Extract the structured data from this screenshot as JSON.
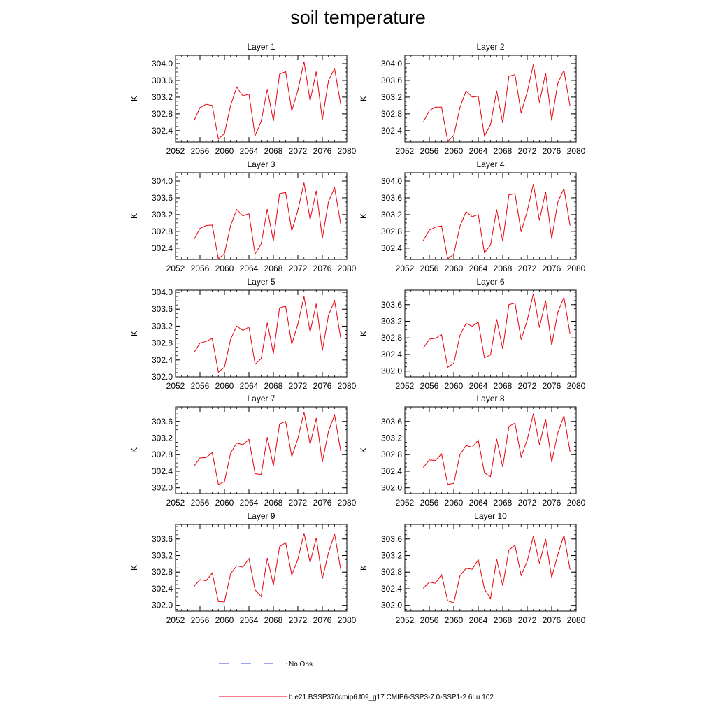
{
  "title": "soil temperature",
  "colors": {
    "model": "#e8000b",
    "obs": "#3a4bd6",
    "axis": "#000000"
  },
  "legend": {
    "obs_label": "No Obs",
    "model_label": "b.e21.BSSP370cmip6.f09_g17.CMIP6-SSP3-7.0-SSP1-2.6Lu.102"
  },
  "chart_data": [
    {
      "type": "line",
      "title": "Layer 1",
      "ylabel": "K",
      "xlim": [
        2052,
        2080
      ],
      "ylim": [
        302.13,
        304.2
      ],
      "xticks": [
        2052,
        2056,
        2060,
        2064,
        2068,
        2072,
        2076,
        2080
      ],
      "yticks": [
        302.4,
        302.8,
        303.2,
        303.6,
        304.0
      ],
      "yticklabels": [
        "302.4",
        "302.8",
        "303.2",
        "303.6",
        "304.0"
      ],
      "x": [
        2055,
        2056,
        2057,
        2058,
        2059,
        2060,
        2061,
        2062,
        2063,
        2064,
        2065,
        2066,
        2067,
        2068,
        2069,
        2070,
        2071,
        2072,
        2073,
        2074,
        2075,
        2076,
        2077,
        2078,
        2079
      ],
      "series": [
        {
          "values": [
            302.63,
            302.95,
            303.03,
            303.0,
            302.2,
            302.33,
            303.0,
            303.44,
            303.23,
            303.27,
            302.28,
            302.62,
            303.39,
            302.63,
            303.75,
            303.81,
            302.87,
            303.36,
            304.05,
            303.11,
            303.81,
            302.66,
            303.6,
            303.88,
            303.02
          ]
        }
      ]
    },
    {
      "type": "line",
      "title": "Layer 2",
      "ylabel": "K",
      "xlim": [
        2052,
        2080
      ],
      "ylim": [
        302.13,
        304.2
      ],
      "xticks": [
        2052,
        2056,
        2060,
        2064,
        2068,
        2072,
        2076,
        2080
      ],
      "yticks": [
        302.4,
        302.8,
        303.2,
        303.6,
        304.0
      ],
      "yticklabels": [
        "302.4",
        "302.8",
        "303.2",
        "303.6",
        "304.0"
      ],
      "x": [
        2055,
        2056,
        2057,
        2058,
        2059,
        2060,
        2061,
        2062,
        2063,
        2064,
        2065,
        2066,
        2067,
        2068,
        2069,
        2070,
        2071,
        2072,
        2073,
        2074,
        2075,
        2076,
        2077,
        2078,
        2079
      ],
      "series": [
        {
          "values": [
            302.6,
            302.88,
            302.96,
            302.96,
            302.15,
            302.28,
            302.95,
            303.35,
            303.2,
            303.22,
            302.27,
            302.54,
            303.35,
            302.58,
            303.7,
            303.74,
            302.82,
            303.32,
            303.98,
            303.07,
            303.78,
            302.64,
            303.54,
            303.84,
            302.98
          ]
        }
      ]
    },
    {
      "type": "line",
      "title": "Layer 3",
      "ylabel": "K",
      "xlim": [
        2052,
        2080
      ],
      "ylim": [
        302.13,
        304.2
      ],
      "xticks": [
        2052,
        2056,
        2060,
        2064,
        2068,
        2072,
        2076,
        2080
      ],
      "yticks": [
        302.4,
        302.8,
        303.2,
        303.6,
        304.0
      ],
      "yticklabels": [
        "302.4",
        "302.8",
        "303.2",
        "303.6",
        "304.0"
      ],
      "x": [
        2055,
        2056,
        2057,
        2058,
        2059,
        2060,
        2061,
        2062,
        2063,
        2064,
        2065,
        2066,
        2067,
        2068,
        2069,
        2070,
        2071,
        2072,
        2073,
        2074,
        2075,
        2076,
        2077,
        2078,
        2079
      ],
      "series": [
        {
          "values": [
            302.6,
            302.87,
            302.94,
            302.95,
            302.14,
            302.27,
            302.94,
            303.32,
            303.17,
            303.22,
            302.26,
            302.5,
            303.33,
            302.57,
            303.7,
            303.73,
            302.81,
            303.3,
            303.96,
            303.08,
            303.77,
            302.63,
            303.51,
            303.84,
            302.97
          ]
        }
      ]
    },
    {
      "type": "line",
      "title": "Layer 4",
      "ylabel": "K",
      "xlim": [
        2052,
        2080
      ],
      "ylim": [
        302.13,
        304.2
      ],
      "xticks": [
        2052,
        2056,
        2060,
        2064,
        2068,
        2072,
        2076,
        2080
      ],
      "yticks": [
        302.4,
        302.8,
        303.2,
        303.6,
        304.0
      ],
      "yticklabels": [
        "302.4",
        "302.8",
        "303.2",
        "303.6",
        "304.0"
      ],
      "x": [
        2055,
        2056,
        2057,
        2058,
        2059,
        2060,
        2061,
        2062,
        2063,
        2064,
        2065,
        2066,
        2067,
        2068,
        2069,
        2070,
        2071,
        2072,
        2073,
        2074,
        2075,
        2076,
        2077,
        2078,
        2079
      ],
      "series": [
        {
          "values": [
            302.58,
            302.83,
            302.9,
            302.93,
            302.14,
            302.26,
            302.92,
            303.27,
            303.15,
            303.2,
            302.29,
            302.47,
            303.32,
            302.56,
            303.67,
            303.7,
            302.79,
            303.28,
            303.93,
            303.06,
            303.75,
            302.62,
            303.5,
            303.82,
            302.94
          ]
        }
      ]
    },
    {
      "type": "line",
      "title": "Layer 5",
      "ylabel": "K",
      "xlim": [
        2052,
        2080
      ],
      "ylim": [
        302.0,
        304.05
      ],
      "xticks": [
        2052,
        2056,
        2060,
        2064,
        2068,
        2072,
        2076,
        2080
      ],
      "yticks": [
        302.0,
        302.4,
        302.8,
        303.2,
        303.6,
        304.0
      ],
      "yticklabels": [
        "302.0",
        "302.4",
        "302.8",
        "303.2",
        "303.6",
        "304.0"
      ],
      "x": [
        2055,
        2056,
        2057,
        2058,
        2059,
        2060,
        2061,
        2062,
        2063,
        2064,
        2065,
        2066,
        2067,
        2068,
        2069,
        2070,
        2071,
        2072,
        2073,
        2074,
        2075,
        2076,
        2077,
        2078,
        2079
      ],
      "series": [
        {
          "values": [
            302.57,
            302.8,
            302.84,
            302.91,
            302.11,
            302.23,
            302.89,
            303.2,
            303.1,
            303.18,
            302.3,
            302.43,
            303.28,
            302.55,
            303.63,
            303.67,
            302.77,
            303.25,
            303.9,
            303.06,
            303.73,
            302.62,
            303.46,
            303.8,
            302.91
          ]
        }
      ]
    },
    {
      "type": "line",
      "title": "Layer 6",
      "ylabel": "K",
      "xlim": [
        2052,
        2080
      ],
      "ylim": [
        301.86,
        303.95
      ],
      "xticks": [
        2052,
        2056,
        2060,
        2064,
        2068,
        2072,
        2076,
        2080
      ],
      "yticks": [
        302.0,
        302.4,
        302.8,
        303.2,
        303.6
      ],
      "yticklabels": [
        "302.0",
        "302.4",
        "302.8",
        "303.2",
        "303.6"
      ],
      "x": [
        2055,
        2056,
        2057,
        2058,
        2059,
        2060,
        2061,
        2062,
        2063,
        2064,
        2065,
        2066,
        2067,
        2068,
        2069,
        2070,
        2071,
        2072,
        2073,
        2074,
        2075,
        2076,
        2077,
        2078,
        2079
      ],
      "series": [
        {
          "values": [
            302.55,
            302.77,
            302.79,
            302.88,
            302.09,
            302.19,
            302.86,
            303.15,
            303.08,
            303.18,
            302.32,
            302.39,
            303.25,
            302.53,
            303.6,
            303.64,
            302.76,
            303.22,
            303.87,
            303.05,
            303.7,
            302.62,
            303.42,
            303.78,
            302.89
          ]
        }
      ]
    },
    {
      "type": "line",
      "title": "Layer 7",
      "ylabel": "K",
      "xlim": [
        2052,
        2080
      ],
      "ylim": [
        301.86,
        303.95
      ],
      "xticks": [
        2052,
        2056,
        2060,
        2064,
        2068,
        2072,
        2076,
        2080
      ],
      "yticks": [
        302.0,
        302.4,
        302.8,
        303.2,
        303.6
      ],
      "yticklabels": [
        "302.0",
        "302.4",
        "302.8",
        "303.2",
        "303.6"
      ],
      "x": [
        2055,
        2056,
        2057,
        2058,
        2059,
        2060,
        2061,
        2062,
        2063,
        2064,
        2065,
        2066,
        2067,
        2068,
        2069,
        2070,
        2071,
        2072,
        2073,
        2074,
        2075,
        2076,
        2077,
        2078,
        2079
      ],
      "series": [
        {
          "values": [
            302.52,
            302.72,
            302.73,
            302.85,
            302.08,
            302.15,
            302.84,
            303.08,
            303.04,
            303.17,
            302.34,
            302.32,
            303.22,
            302.52,
            303.54,
            303.6,
            302.75,
            303.19,
            303.83,
            303.05,
            303.68,
            302.62,
            303.37,
            303.76,
            302.88
          ]
        }
      ]
    },
    {
      "type": "line",
      "title": "Layer 8",
      "ylabel": "K",
      "xlim": [
        2052,
        2080
      ],
      "ylim": [
        301.86,
        303.95
      ],
      "xticks": [
        2052,
        2056,
        2060,
        2064,
        2068,
        2072,
        2076,
        2080
      ],
      "yticks": [
        302.0,
        302.4,
        302.8,
        303.2,
        303.6
      ],
      "yticklabels": [
        "302.0",
        "302.4",
        "302.8",
        "303.2",
        "303.6"
      ],
      "x": [
        2055,
        2056,
        2057,
        2058,
        2059,
        2060,
        2061,
        2062,
        2063,
        2064,
        2065,
        2066,
        2067,
        2068,
        2069,
        2070,
        2071,
        2072,
        2073,
        2074,
        2075,
        2076,
        2077,
        2078,
        2079
      ],
      "series": [
        {
          "values": [
            302.49,
            302.67,
            302.66,
            302.82,
            302.08,
            302.11,
            302.8,
            303.02,
            302.98,
            303.15,
            302.36,
            302.27,
            303.18,
            302.5,
            303.48,
            303.56,
            302.74,
            303.16,
            303.79,
            303.04,
            303.66,
            302.62,
            303.33,
            303.74,
            302.87
          ]
        }
      ]
    },
    {
      "type": "line",
      "title": "Layer 9",
      "ylabel": "K",
      "xlim": [
        2052,
        2080
      ],
      "ylim": [
        301.86,
        303.95
      ],
      "xticks": [
        2052,
        2056,
        2060,
        2064,
        2068,
        2072,
        2076,
        2080
      ],
      "yticks": [
        302.0,
        302.4,
        302.8,
        303.2,
        303.6
      ],
      "yticklabels": [
        "302.0",
        "302.4",
        "302.8",
        "303.2",
        "303.6"
      ],
      "x": [
        2055,
        2056,
        2057,
        2058,
        2059,
        2060,
        2061,
        2062,
        2063,
        2064,
        2065,
        2066,
        2067,
        2068,
        2069,
        2070,
        2071,
        2072,
        2073,
        2074,
        2075,
        2076,
        2077,
        2078,
        2079
      ],
      "series": [
        {
          "values": [
            302.45,
            302.62,
            302.59,
            302.78,
            302.09,
            302.08,
            302.76,
            302.95,
            302.92,
            303.13,
            302.37,
            302.21,
            303.14,
            302.49,
            303.41,
            303.51,
            302.73,
            303.11,
            303.74,
            303.03,
            303.63,
            302.64,
            303.27,
            303.72,
            302.86
          ]
        }
      ]
    },
    {
      "type": "line",
      "title": "Layer 10",
      "ylabel": "K",
      "xlim": [
        2052,
        2080
      ],
      "ylim": [
        301.86,
        303.95
      ],
      "xticks": [
        2052,
        2056,
        2060,
        2064,
        2068,
        2072,
        2076,
        2080
      ],
      "yticks": [
        302.0,
        302.4,
        302.8,
        303.2,
        303.6
      ],
      "yticklabels": [
        "302.0",
        "302.4",
        "302.8",
        "303.2",
        "303.6"
      ],
      "x": [
        2055,
        2056,
        2057,
        2058,
        2059,
        2060,
        2061,
        2062,
        2063,
        2064,
        2065,
        2066,
        2067,
        2068,
        2069,
        2070,
        2071,
        2072,
        2073,
        2074,
        2075,
        2076,
        2077,
        2078,
        2079
      ],
      "series": [
        {
          "values": [
            302.41,
            302.56,
            302.53,
            302.74,
            302.11,
            302.06,
            302.71,
            302.89,
            302.87,
            303.1,
            302.4,
            302.16,
            303.11,
            302.47,
            303.33,
            303.45,
            302.72,
            303.06,
            303.67,
            303.01,
            303.6,
            302.67,
            303.22,
            303.69,
            302.86
          ]
        }
      ]
    }
  ]
}
